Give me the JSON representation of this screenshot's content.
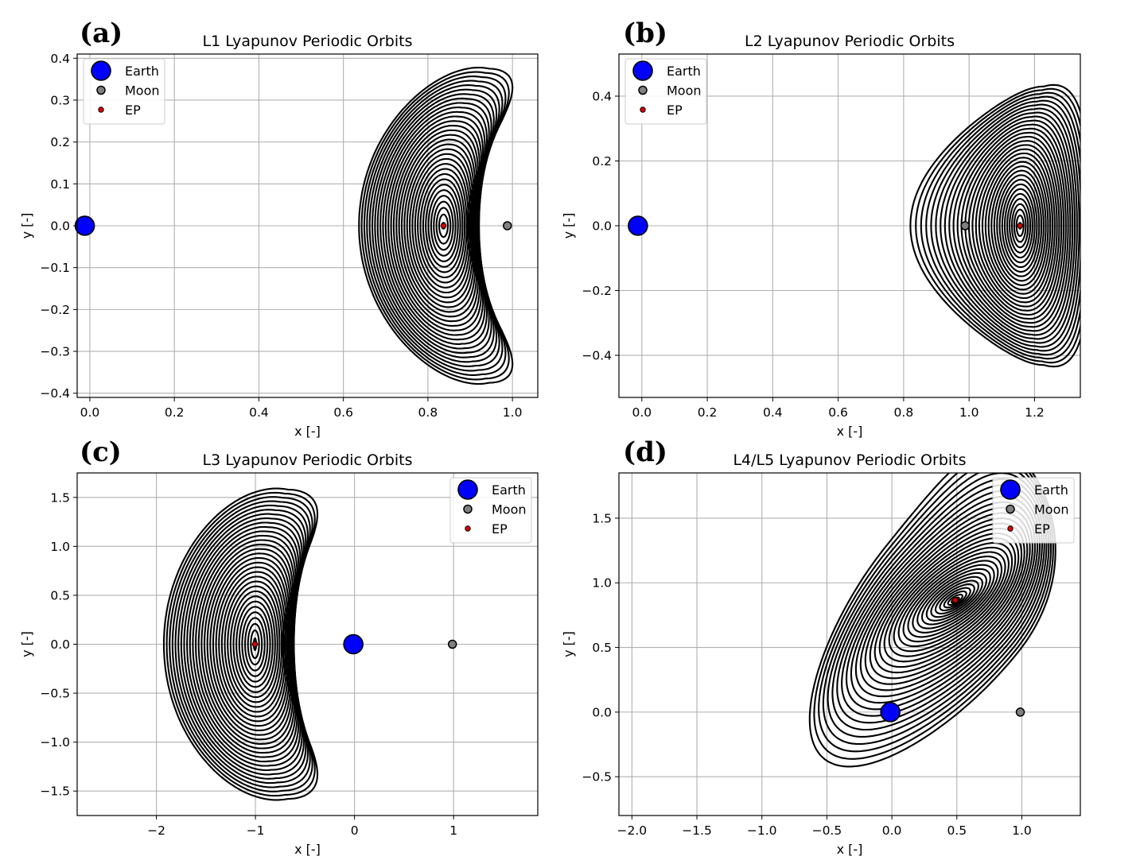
{
  "figure": {
    "panels": [
      "(a)",
      "(b)",
      "(c)",
      "(d)"
    ]
  },
  "chart_data": [
    {
      "panel": "(a)",
      "type": "line",
      "title": "L1 Lyapunov Periodic Orbits",
      "xlabel": "x [-]",
      "ylabel": "y [-]",
      "xlim": [
        -0.03,
        1.06
      ],
      "ylim": [
        -0.41,
        0.41
      ],
      "xticks": [
        0.0,
        0.2,
        0.4,
        0.6,
        0.8,
        1.0
      ],
      "xtick_labels": [
        "0.0",
        "0.2",
        "0.4",
        "0.6",
        "0.8",
        "1.0"
      ],
      "yticks": [
        -0.4,
        -0.3,
        -0.2,
        -0.1,
        0.0,
        0.1,
        0.2,
        0.3,
        0.4
      ],
      "ytick_labels": [
        "−0.4",
        "−0.3",
        "−0.2",
        "−0.1",
        "0.0",
        "0.1",
        "0.2",
        "0.3",
        "0.4"
      ],
      "grid": true,
      "legend": {
        "placement": "upper-left",
        "entries": [
          "Earth",
          "Moon",
          "EP"
        ]
      },
      "bodies": {
        "earth": [
          -0.012,
          0.0
        ],
        "moon": [
          0.988,
          0.0
        ],
        "ep": [
          0.8369,
          0.0
        ]
      },
      "family": {
        "count": 32,
        "ep_x": 0.8369,
        "min_ax": 0.004,
        "max_ax": 0.2,
        "min_ay": 0.007,
        "max_ay": 0.375,
        "xbulge": 0.9,
        "dimple": 0.6,
        "tilt": 0.0
      }
    },
    {
      "panel": "(b)",
      "type": "line",
      "title": "L2 Lyapunov Periodic Orbits",
      "xlabel": "x [-]",
      "ylabel": "y [-]",
      "xlim": [
        -0.07,
        1.34
      ],
      "ylim": [
        -0.53,
        0.53
      ],
      "xticks": [
        0.0,
        0.2,
        0.4,
        0.6,
        0.8,
        1.0,
        1.2
      ],
      "xtick_labels": [
        "0.0",
        "0.2",
        "0.4",
        "0.6",
        "0.8",
        "1.0",
        "1.2"
      ],
      "yticks": [
        -0.4,
        -0.2,
        0.0,
        0.2,
        0.4
      ],
      "ytick_labels": [
        "−0.4",
        "−0.2",
        "0.0",
        "0.2",
        "0.4"
      ],
      "grid": true,
      "legend": {
        "placement": "upper-left",
        "entries": [
          "Earth",
          "Moon",
          "EP"
        ]
      },
      "bodies": {
        "earth": [
          -0.012,
          0.0
        ],
        "moon": [
          0.988,
          0.0
        ],
        "ep": [
          1.1557,
          0.0
        ]
      },
      "family": {
        "count": 32,
        "ep_x": 1.1557,
        "min_ax": 0.004,
        "max_ax": 0.215,
        "min_ay": 0.009,
        "max_ay": 0.43,
        "xbulge": 0.75,
        "dimple": 0.62,
        "tilt": 0.0
      }
    },
    {
      "panel": "(c)",
      "type": "line",
      "title": "L3 Lyapunov Periodic Orbits",
      "xlabel": "x [-]",
      "ylabel": "y [-]",
      "xlim": [
        -2.8,
        1.85
      ],
      "ylim": [
        -1.75,
        1.75
      ],
      "xticks": [
        -2,
        -1,
        0,
        1
      ],
      "xtick_labels": [
        "−2",
        "−1",
        "0",
        "1"
      ],
      "yticks": [
        -1.5,
        -1.0,
        -0.5,
        0.0,
        0.5,
        1.0,
        1.5
      ],
      "ytick_labels": [
        "−1.5",
        "−1.0",
        "−0.5",
        "0.0",
        "0.5",
        "1.0",
        "1.5"
      ],
      "grid": true,
      "legend": {
        "placement": "upper-right",
        "entries": [
          "Earth",
          "Moon",
          "EP"
        ]
      },
      "bodies": {
        "earth": [
          -0.012,
          0.0
        ],
        "moon": [
          0.988,
          0.0
        ],
        "ep": [
          -1.005,
          0.0
        ]
      },
      "family": {
        "count": 32,
        "ep_x": -1.005,
        "min_ax": 0.012,
        "max_ax": 0.92,
        "min_ay": 0.06,
        "max_ay": 1.58,
        "xbulge": 0.6,
        "dimple": 0.58,
        "tilt": 0.0
      }
    },
    {
      "panel": "(d)",
      "type": "line",
      "title": "L4/L5 Lyapunov Periodic Orbits",
      "xlabel": "x [-]",
      "ylabel": "y [-]",
      "xlim": [
        -2.1,
        1.45
      ],
      "ylim": [
        -0.8,
        1.85
      ],
      "xticks": [
        -2.0,
        -1.5,
        -1.0,
        -0.5,
        0.0,
        0.5,
        1.0
      ],
      "xtick_labels": [
        "−2.0",
        "−1.5",
        "−1.0",
        "−0.5",
        "0.0",
        "0.5",
        "1.0"
      ],
      "yticks": [
        -0.5,
        0.0,
        0.5,
        1.0,
        1.5
      ],
      "ytick_labels": [
        "−0.5",
        "0.0",
        "0.5",
        "1.0",
        "1.5"
      ],
      "grid": true,
      "legend": {
        "placement": "upper-right",
        "entries": [
          "Earth",
          "Moon",
          "EP"
        ]
      },
      "bodies": {
        "earth": [
          -0.012,
          0.0
        ],
        "moon": [
          0.988,
          0.0
        ],
        "ep": [
          0.488,
          0.866
        ]
      },
      "family": {
        "count": 32,
        "ep_x": 0.488,
        "ep_y": 0.866,
        "min_r": 0.035,
        "max_r": 1.45
      }
    }
  ]
}
